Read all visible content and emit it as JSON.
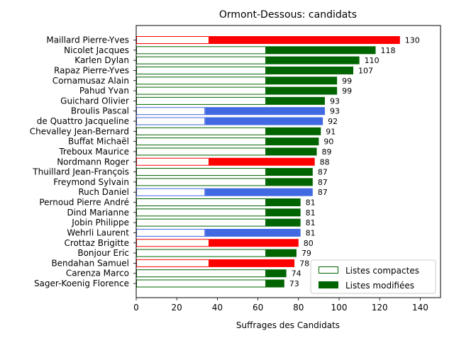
{
  "chart_data": {
    "type": "bar",
    "orientation": "horizontal-stacked",
    "title": "Ormont-Dessous: candidats",
    "xlabel": "Suffrages des Candidats",
    "ylabel": "",
    "xlim": [
      0,
      150
    ],
    "xticks": [
      0,
      20,
      40,
      60,
      80,
      100,
      120,
      140
    ],
    "grid": false,
    "legend_position": "bottom-right",
    "legend": [
      {
        "label": "Listes compactes",
        "style": "outline",
        "color": "#006400"
      },
      {
        "label": "Listes modifiées",
        "style": "filled",
        "color": "#006400"
      }
    ],
    "categories": [
      "Maillard Pierre-Yves",
      "Nicolet Jacques",
      "Karlen Dylan",
      "Rapaz Pierre-Yves",
      "Cornamusaz Alain",
      "Pahud Yvan",
      "Guichard Olivier",
      "Broulis Pascal",
      "de Quattro Jacqueline",
      "Chevalley Jean-Bernard",
      "Buffat Michaël",
      "Treboux Maurice",
      "Nordmann Roger",
      "Thuillard Jean-François",
      "Freymond Sylvain",
      "Ruch Daniel",
      "Pernoud Pierre André",
      "Dind Marianne",
      "Jobin Philippe",
      "Wehrli Laurent",
      "Crottaz Brigitte",
      "Bonjour Eric",
      "Bendahan Samuel",
      "Carenza Marco",
      "Sager-Koenig Florence"
    ],
    "totals": [
      130,
      118,
      110,
      107,
      99,
      99,
      93,
      93,
      92,
      91,
      90,
      89,
      88,
      87,
      87,
      87,
      81,
      81,
      81,
      81,
      80,
      79,
      78,
      74,
      73
    ],
    "series": [
      {
        "name": "Listes compactes",
        "values": [
          36,
          64,
          64,
          64,
          64,
          64,
          64,
          34,
          34,
          64,
          64,
          64,
          36,
          64,
          64,
          34,
          64,
          64,
          64,
          34,
          36,
          64,
          36,
          64,
          64
        ]
      },
      {
        "name": "Listes modifiées",
        "values": [
          94,
          54,
          46,
          43,
          35,
          35,
          29,
          59,
          58,
          27,
          26,
          25,
          52,
          23,
          23,
          53,
          17,
          17,
          17,
          47,
          44,
          15,
          42,
          10,
          9
        ]
      }
    ],
    "colors": [
      "#ff0000",
      "#006400",
      "#006400",
      "#006400",
      "#006400",
      "#006400",
      "#006400",
      "#4169e1",
      "#4169e1",
      "#006400",
      "#006400",
      "#006400",
      "#ff0000",
      "#006400",
      "#006400",
      "#4169e1",
      "#006400",
      "#006400",
      "#006400",
      "#4169e1",
      "#ff0000",
      "#006400",
      "#ff0000",
      "#006400",
      "#006400"
    ]
  }
}
